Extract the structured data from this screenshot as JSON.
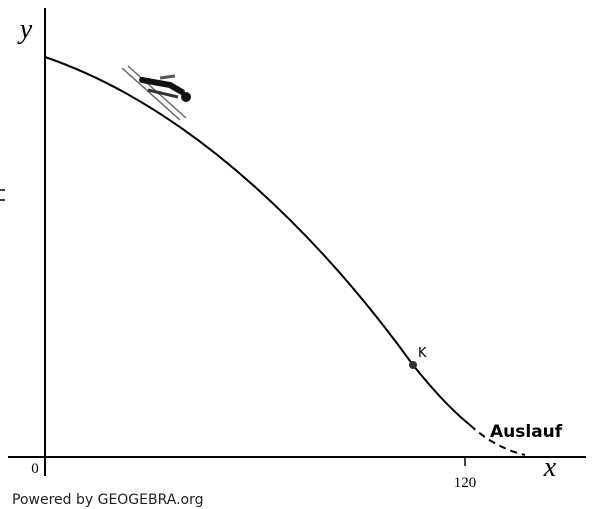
{
  "axes": {
    "y_label": "y",
    "x_label": "x",
    "origin_label": "0",
    "x_tick_label": "120"
  },
  "point_label": "K",
  "annotation": "Auslauf",
  "footer": "Powered by GEOGEBRA.org"
}
